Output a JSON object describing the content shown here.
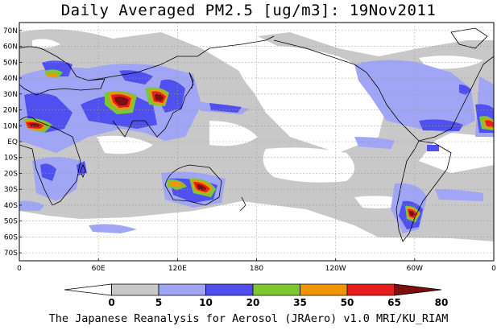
{
  "title": "Daily Averaged PM2.5 [ug/m3]: 19Nov2011",
  "footer": "The Japanese Reanalysis for Aerosol (JRAero) v1.0 MRI/KU_RIAM",
  "lat_labels": [
    "70N",
    "60N",
    "50N",
    "40N",
    "30N",
    "20N",
    "10N",
    "EQ",
    "10S",
    "20S",
    "30S",
    "40S",
    "50S",
    "60S",
    "70S"
  ],
  "lon_labels": [
    "0",
    "60E",
    "120E",
    "180",
    "120W",
    "60W",
    "0"
  ],
  "colorbar": {
    "labels": [
      "0",
      "5",
      "10",
      "20",
      "35",
      "50",
      "65",
      "80"
    ],
    "colors": [
      "#ffffff",
      "#c8c8c8",
      "#a0a5f5",
      "#5050f0",
      "#7dc832",
      "#f09600",
      "#e61e1e",
      "#7d0f0f"
    ]
  },
  "colors": {
    "gray": "#c8c8c8",
    "light_blue": "#a0a5f5",
    "blue": "#5050f0",
    "green": "#7dc832",
    "orange": "#f09600",
    "red": "#e61e1e",
    "dark_red": "#7d0f0f"
  }
}
